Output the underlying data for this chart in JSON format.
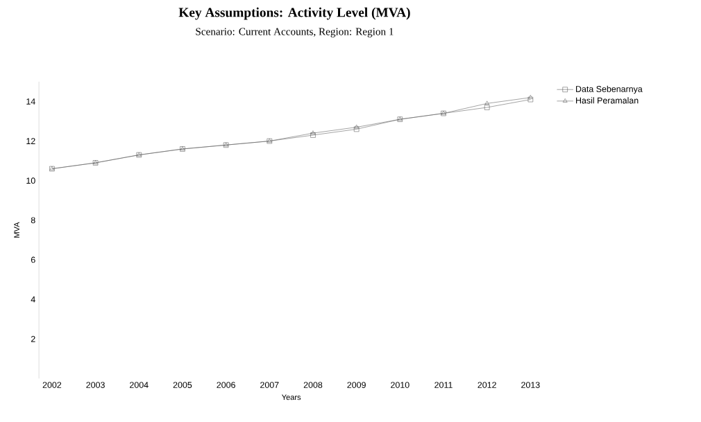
{
  "chart_data": {
    "type": "line",
    "title": "Key Assumptions: Activity Level (MVA)",
    "subtitle": "Scenario: Current Accounts, Region: Region 1",
    "xlabel": "Years",
    "ylabel": "MVA",
    "categories": [
      "2002",
      "2003",
      "2004",
      "2005",
      "2006",
      "2007",
      "2008",
      "2009",
      "2010",
      "2011",
      "2012",
      "2013"
    ],
    "series": [
      {
        "name": "Data Sebenarnya",
        "color": "#5a5a5a",
        "marker": "square",
        "values": [
          10.6,
          10.9,
          11.3,
          11.6,
          11.8,
          12.0,
          12.3,
          12.6,
          13.1,
          13.4,
          13.7,
          14.1
        ]
      },
      {
        "name": "Hasil Peramalan",
        "color": "#5a5a5a",
        "marker": "triangle",
        "values": [
          10.6,
          10.9,
          11.3,
          11.6,
          11.8,
          12.0,
          12.4,
          12.7,
          13.1,
          13.4,
          13.9,
          14.2
        ]
      }
    ],
    "ylim": [
      0,
      15
    ],
    "yticks": [
      2,
      4,
      6,
      8,
      10,
      12,
      14
    ],
    "grid": false,
    "legend": "top right",
    "line_style": "solid"
  }
}
